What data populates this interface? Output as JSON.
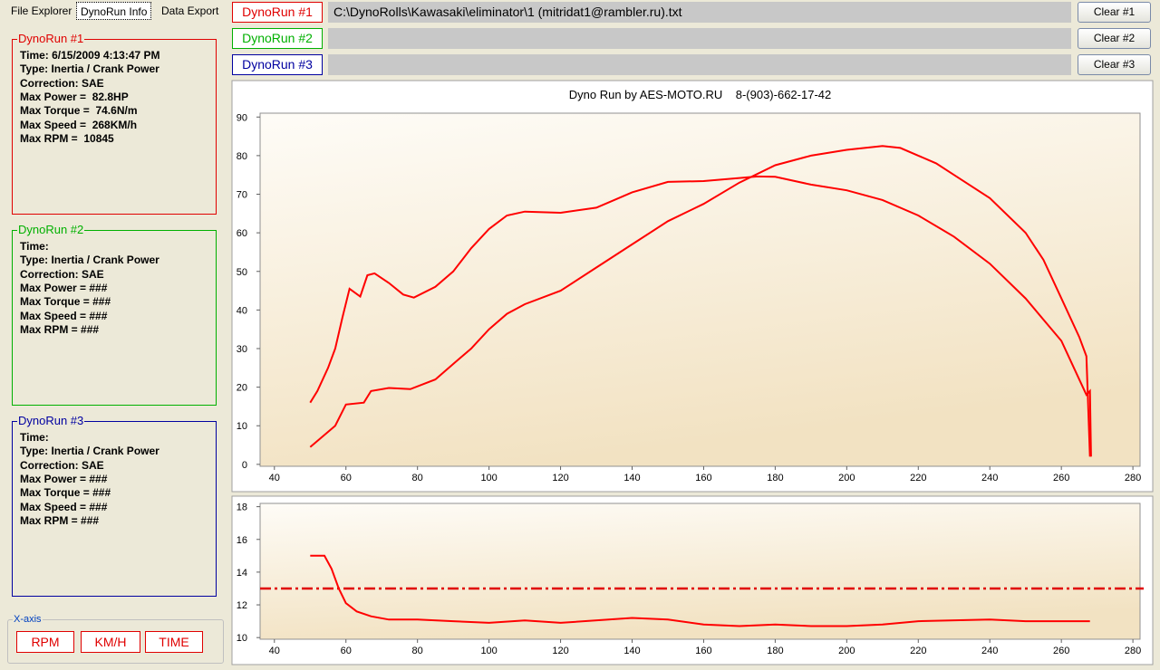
{
  "tabs": [
    "File Explorer",
    "DynoRun Info",
    "Data Export"
  ],
  "runs": [
    {
      "label": "DynoRun #1",
      "color": "#e00000",
      "path": "C:\\DynoRolls\\Kawasaki\\eliminator\\1 (mitridat1@rambler.ru).txt",
      "button": "Clear #1",
      "info": [
        "Time: 6/15/2009 4:13:47 PM",
        "Type: Inertia / Crank Power",
        "Correction: SAE",
        "Max Power =  82.8HP",
        "Max Torque =  74.6N/m",
        "Max Speed =  268KM/h",
        "Max RPM =  10845"
      ]
    },
    {
      "label": "DynoRun #2",
      "color": "#00b000",
      "path": "",
      "button": "Clear #2",
      "info": [
        "Time:",
        "Type: Inertia / Crank Power",
        "Correction: SAE",
        "Max Power = ###",
        "Max Torque = ###",
        "Max Speed = ###",
        "Max RPM = ###"
      ]
    },
    {
      "label": "DynoRun #3",
      "color": "#0000a0",
      "path": "",
      "button": "Clear #3",
      "info": [
        "Time:",
        "Type: Inertia / Crank Power",
        "Correction: SAE",
        "Max Power = ###",
        "Max Torque = ###",
        "Max Speed = ###",
        "Max RPM = ###"
      ]
    }
  ],
  "x_axis": {
    "title": "X-axis",
    "buttons": [
      "RPM",
      "KM/H",
      "TIME"
    ]
  },
  "chart_data": [
    {
      "type": "line",
      "title": "Dyno Run by AES-MOTO.RU    8-(903)-662-17-42",
      "xlim": [
        36,
        282
      ],
      "ylim": [
        -0.5,
        91
      ],
      "xticks": [
        40,
        60,
        80,
        100,
        120,
        140,
        160,
        180,
        200,
        220,
        240,
        260,
        280
      ],
      "yticks": [
        0,
        10,
        20,
        30,
        40,
        50,
        60,
        70,
        80,
        90
      ],
      "series": [
        {
          "color": "#ff0000",
          "x": [
            50,
            57,
            60,
            65,
            67,
            72,
            78,
            85,
            90,
            95,
            100,
            105,
            110,
            120,
            130,
            140,
            150,
            160,
            170,
            180,
            190,
            200,
            210,
            215,
            220,
            225,
            230,
            240,
            250,
            255,
            260,
            265,
            267,
            268
          ],
          "values": [
            4.5,
            10,
            15.5,
            16,
            19,
            19.8,
            19.5,
            22,
            26,
            30,
            35,
            39,
            41.5,
            45,
            51,
            57,
            63,
            67.5,
            73,
            77.5,
            80,
            81.5,
            82.5,
            82,
            80,
            78,
            75,
            69,
            60,
            53,
            43,
            33,
            28,
            2
          ]
        },
        {
          "color": "#ff0000",
          "x": [
            50,
            52,
            55,
            57,
            59,
            61,
            64,
            66,
            68,
            72,
            76,
            79,
            85,
            90,
            95,
            100,
            105,
            110,
            120,
            130,
            135,
            140,
            150,
            160,
            170,
            175,
            180,
            190,
            200,
            210,
            220,
            230,
            240,
            250,
            260,
            265,
            267,
            268,
            268.3
          ],
          "values": [
            16,
            19,
            25,
            30,
            38,
            45.5,
            43.5,
            49,
            49.5,
            47,
            44,
            43.2,
            46,
            50,
            56,
            61,
            64.5,
            65.5,
            65.2,
            66.5,
            68.5,
            70.5,
            73.2,
            73.4,
            74.2,
            74.6,
            74.5,
            72.5,
            71,
            68.5,
            64.5,
            59,
            52,
            43,
            32,
            22,
            18,
            19,
            2
          ]
        }
      ]
    },
    {
      "type": "line",
      "xlim": [
        36,
        282
      ],
      "ylim": [
        9.9,
        18.2
      ],
      "xticks": [
        40,
        60,
        80,
        100,
        120,
        140,
        160,
        180,
        200,
        220,
        240,
        260,
        280
      ],
      "yticks": [
        10,
        12,
        14,
        16,
        18
      ],
      "hline": 13,
      "hline_color": "#e00000",
      "series": [
        {
          "color": "#ff0000",
          "x": [
            50,
            54,
            56,
            58,
            60,
            63,
            67,
            72,
            80,
            90,
            100,
            110,
            120,
            140,
            150,
            160,
            170,
            180,
            190,
            200,
            210,
            220,
            240,
            250,
            260,
            268
          ],
          "values": [
            15,
            15,
            14.2,
            13,
            12.1,
            11.6,
            11.3,
            11.1,
            11.1,
            11,
            10.9,
            11.05,
            10.9,
            11.2,
            11.1,
            10.8,
            10.7,
            10.8,
            10.7,
            10.7,
            10.8,
            11,
            11.1,
            11,
            11,
            11
          ]
        }
      ]
    }
  ]
}
